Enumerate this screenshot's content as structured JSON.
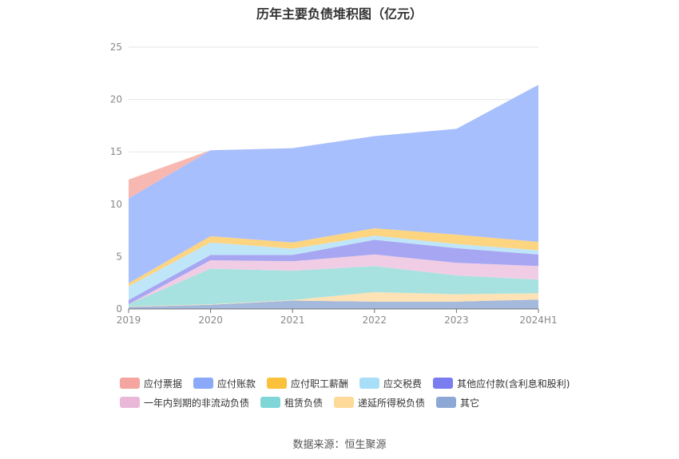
{
  "chart_data": {
    "type": "area",
    "stacked": true,
    "title": "历年主要负债堆积图（亿元）",
    "x": [
      "2019",
      "2020",
      "2021",
      "2022",
      "2023",
      "2024H1"
    ],
    "ylim": [
      0,
      25
    ],
    "yticks": [
      0,
      5,
      10,
      15,
      20,
      25
    ],
    "grid": true,
    "legend_position": "bottom",
    "series": [
      {
        "name": "其它",
        "color": "#a4b9dc",
        "values": [
          0.2,
          0.4,
          0.8,
          0.7,
          0.7,
          0.9
        ]
      },
      {
        "name": "递延所得税负债",
        "color": "#fde2b6",
        "values": [
          0.05,
          0.05,
          0.05,
          0.9,
          0.7,
          0.6
        ]
      },
      {
        "name": "租赁负债",
        "color": "#a8e2e0",
        "values": [
          0.2,
          3.4,
          2.8,
          2.5,
          1.8,
          1.3
        ]
      },
      {
        "name": "一年内到期的非流动负债",
        "color": "#f0cde4",
        "values": [
          0.0,
          0.8,
          0.9,
          1.1,
          1.2,
          1.3
        ]
      },
      {
        "name": "其他应付款(含利息和股利)",
        "color": "#a7a6f2",
        "values": [
          0.4,
          0.5,
          0.6,
          1.4,
          1.4,
          1.1
        ]
      },
      {
        "name": "应交税费",
        "color": "#bfe6f8",
        "values": [
          1.3,
          1.2,
          0.6,
          0.4,
          0.4,
          0.4
        ]
      },
      {
        "name": "应付职工薪酬",
        "color": "#fdd47f",
        "values": [
          0.3,
          0.6,
          0.6,
          0.7,
          0.9,
          0.8
        ]
      },
      {
        "name": "应付账款",
        "color": "#a8bffd",
        "values": [
          8.1,
          8.2,
          9.0,
          8.8,
          10.1,
          15.0
        ]
      },
      {
        "name": "应付票据",
        "color": "#f7b8b2",
        "values": [
          1.8,
          0.0,
          0.0,
          0.0,
          0.0,
          0.0
        ]
      }
    ],
    "legend_entries": [
      {
        "name": "应付票据",
        "color": "#f4a5a0"
      },
      {
        "name": "应付账款",
        "color": "#8aa9f8"
      },
      {
        "name": "应付职工薪酬",
        "color": "#fbc13b"
      },
      {
        "name": "应交税费",
        "color": "#a9def8"
      },
      {
        "name": "其他应付款(含利息和股利)",
        "color": "#7a7df0"
      },
      {
        "name": "一年内到期的非流动负债",
        "color": "#e9b8d8"
      },
      {
        "name": "租赁负债",
        "color": "#7fd6d6"
      },
      {
        "name": "递延所得税负债",
        "color": "#fdd99a"
      },
      {
        "name": "其它",
        "color": "#8ea8d6"
      }
    ]
  },
  "footer": {
    "source": "数据来源：恒生聚源"
  }
}
